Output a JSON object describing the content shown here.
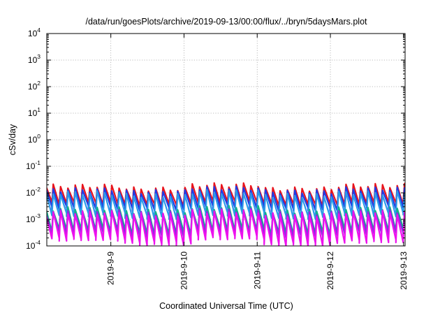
{
  "chart_data": {
    "type": "line",
    "title": "/data/run/goesPlots/archive/2019-09-13/00:00/flux/../bryn/5daysMars.plot",
    "xlabel": "Coordinated Universal Time (UTC)",
    "ylabel": "cSv/day",
    "yscale": "log",
    "ylim": [
      0.0001,
      10000
    ],
    "xlim": [
      "2019-09-08 03:00",
      "2019-09-13 00:30"
    ],
    "grid": true,
    "legend": "none",
    "y_ticks": [
      {
        "base": "10",
        "exp": "-4",
        "value": 0.0001
      },
      {
        "base": "10",
        "exp": "-3",
        "value": 0.001
      },
      {
        "base": "10",
        "exp": "-2",
        "value": 0.01
      },
      {
        "base": "10",
        "exp": "-1",
        "value": 0.1
      },
      {
        "base": "10",
        "exp": "0",
        "value": 1
      },
      {
        "base": "10",
        "exp": "1",
        "value": 10
      },
      {
        "base": "10",
        "exp": "2",
        "value": 100
      },
      {
        "base": "10",
        "exp": "3",
        "value": 1000
      },
      {
        "base": "10",
        "exp": "4",
        "value": 10000
      }
    ],
    "x_ticks": [
      {
        "label": "2019-9-9",
        "value": "2019-09-09 00:00"
      },
      {
        "label": "2019-9-10",
        "value": "2019-09-10 00:00"
      },
      {
        "label": "2019-9-11",
        "value": "2019-09-11 00:00"
      },
      {
        "label": "2019-9-12",
        "value": "2019-09-12 00:00"
      },
      {
        "label": "2019-9-13",
        "value": "2019-09-13 00:00"
      }
    ],
    "sawtooth_period_hours": 2.4,
    "series": [
      {
        "color": "#e8141c",
        "peak_values": [
          0.018,
          0.014,
          0.02,
          0.014,
          0.019
        ],
        "trough_values": [
          0.004,
          0.0035,
          0.0045,
          0.0035,
          0.004
        ]
      },
      {
        "color": "#1f3ce6",
        "peak_values": [
          0.013,
          0.011,
          0.015,
          0.011,
          0.014
        ],
        "trough_values": [
          0.0028,
          0.0024,
          0.003,
          0.0024,
          0.0028
        ]
      },
      {
        "color": "#2b9be8",
        "peak_values": [
          0.01,
          0.008,
          0.011,
          0.008,
          0.01
        ],
        "trough_values": [
          0.0015,
          0.0012,
          0.0016,
          0.0012,
          0.0015
        ]
      },
      {
        "color": "#12b08a",
        "peak_values": [
          0.0025,
          0.002,
          0.0028,
          0.002,
          0.0025
        ],
        "trough_values": [
          0.0004,
          0.0003,
          0.0004,
          0.0003,
          0.0004
        ]
      },
      {
        "color": "#8a2be2",
        "peak_values": [
          0.002,
          0.0017,
          0.0022,
          0.0017,
          0.002
        ],
        "trough_values": [
          0.0003,
          0.00022,
          0.0003,
          0.00022,
          0.0003
        ]
      },
      {
        "color": "#ee10ee",
        "peak_values": [
          0.0018,
          0.0015,
          0.002,
          0.0015,
          0.0018
        ],
        "trough_values": [
          0.00018,
          0.00012,
          0.0002,
          0.00011,
          0.00015
        ]
      }
    ]
  }
}
